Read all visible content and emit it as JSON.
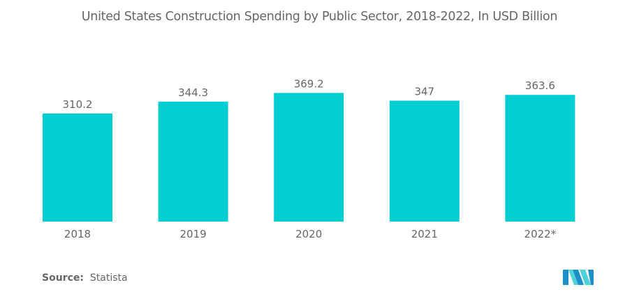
{
  "chart_data": {
    "type": "bar",
    "title": "United States Construction Spending by Public Sector, 2018-2022, In USD Billion",
    "categories": [
      "2018",
      "2019",
      "2020",
      "2021",
      "2022*"
    ],
    "values": [
      310.2,
      344.3,
      369.2,
      347,
      363.6
    ],
    "value_labels": [
      "310.2",
      "344.3",
      "369.2",
      "347",
      "363.6"
    ],
    "xlabel": "",
    "ylabel": "",
    "ylim": [
      0,
      420
    ],
    "grid": false,
    "legend": "none",
    "colors": {
      "bar": "#00CED1",
      "text": "#666666"
    }
  },
  "footer": {
    "source_label": "Source:",
    "source_value": "Statista"
  },
  "logo": {
    "icon": "mordor-logo-icon",
    "colors": [
      "#1F8FC9",
      "#4FD1D9"
    ]
  }
}
